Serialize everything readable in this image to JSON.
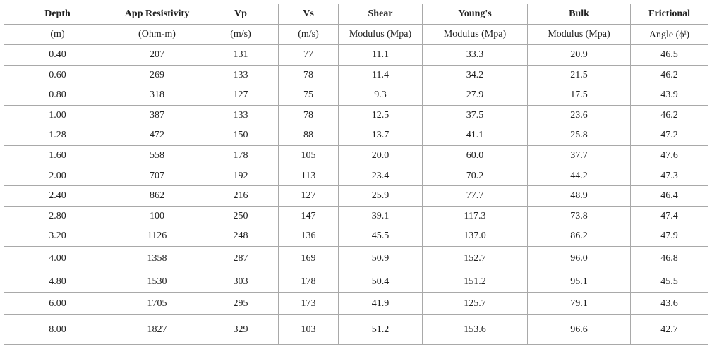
{
  "table": {
    "header": [
      [
        "Depth",
        "App Resistivity",
        "Vp",
        "Vs",
        "Shear",
        "Young's",
        "Bulk",
        "Frictional"
      ],
      [
        "(m)",
        "(Ohm-m)",
        "(m/s)",
        "(m/s)",
        "Modulus (Mpa)",
        "Modulus (Mpa)",
        "Modulus (Mpa)",
        "Angle (ϕⁱ)"
      ]
    ],
    "rows": [
      [
        "0.40",
        "207",
        "131",
        "77",
        "11.1",
        "33.3",
        "20.9",
        "46.5"
      ],
      [
        "0.60",
        "269",
        "133",
        "78",
        "11.4",
        "34.2",
        "21.5",
        "46.2"
      ],
      [
        "0.80",
        "318",
        "127",
        "75",
        "9.3",
        "27.9",
        "17.5",
        "43.9"
      ],
      [
        "1.00",
        "387",
        "133",
        "78",
        "12.5",
        "37.5",
        "23.6",
        "46.2"
      ],
      [
        "1.28",
        "472",
        "150",
        "88",
        "13.7",
        "41.1",
        "25.8",
        "47.2"
      ],
      [
        "1.60",
        "558",
        "178",
        "105",
        "20.0",
        "60.0",
        "37.7",
        "47.6"
      ],
      [
        "2.00",
        "707",
        "192",
        "113",
        "23.4",
        "70.2",
        "44.2",
        "47.3"
      ],
      [
        "2.40",
        "862",
        "216",
        "127",
        "25.9",
        "77.7",
        "48.9",
        "46.4"
      ],
      [
        "2.80",
        "100",
        "250",
        "147",
        "39.1",
        "117.3",
        "73.8",
        "47.4"
      ],
      [
        "3.20",
        "1126",
        "248",
        "136",
        "45.5",
        "137.0",
        "86.2",
        "47.9"
      ],
      [
        "4.00",
        "1358",
        "287",
        "169",
        "50.9",
        "152.7",
        "96.0",
        "46.8"
      ],
      [
        "4.80",
        "1530",
        "303",
        "178",
        "50.4",
        "151.2",
        "95.1",
        "45.5"
      ],
      [
        "6.00",
        "1705",
        "295",
        "173",
        "41.9",
        "125.7",
        "79.1",
        "43.6"
      ],
      [
        "8.00",
        "1827",
        "329",
        "103",
        "51.2",
        "153.6",
        "96.6",
        "42.7"
      ]
    ]
  }
}
